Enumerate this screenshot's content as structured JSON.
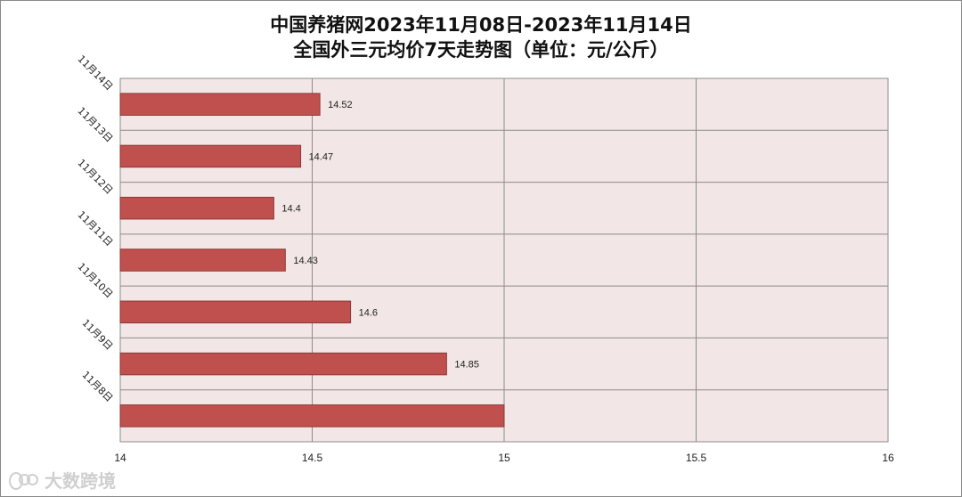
{
  "chart_data": {
    "type": "bar",
    "orientation": "horizontal",
    "title_line1": "中国养猪网2023年11月08日-2023年11月14日",
    "title_line2": "全国外三元均价7天走势图（单位：元/公斤）",
    "categories": [
      "11月14日",
      "11月13日",
      "11月12日",
      "11月11日",
      "11月10日",
      "11月9日",
      "11月8日"
    ],
    "values": [
      14.52,
      14.47,
      14.4,
      14.43,
      14.6,
      14.85,
      15
    ],
    "data_labels": [
      "14.52",
      "14.47",
      "14.4",
      "14.43",
      "14.6",
      "14.85",
      ""
    ],
    "xlim": [
      14,
      16
    ],
    "xticks": [
      "14",
      "14.5",
      "15",
      "15.5",
      "16"
    ],
    "grid": true,
    "colors": {
      "bar_fill": "#c0504d",
      "bar_stroke": "#8c3836",
      "plot_bg": "#f2e6e6",
      "grid": "#8c8c8c"
    }
  },
  "watermark": {
    "text": "大数跨境"
  }
}
